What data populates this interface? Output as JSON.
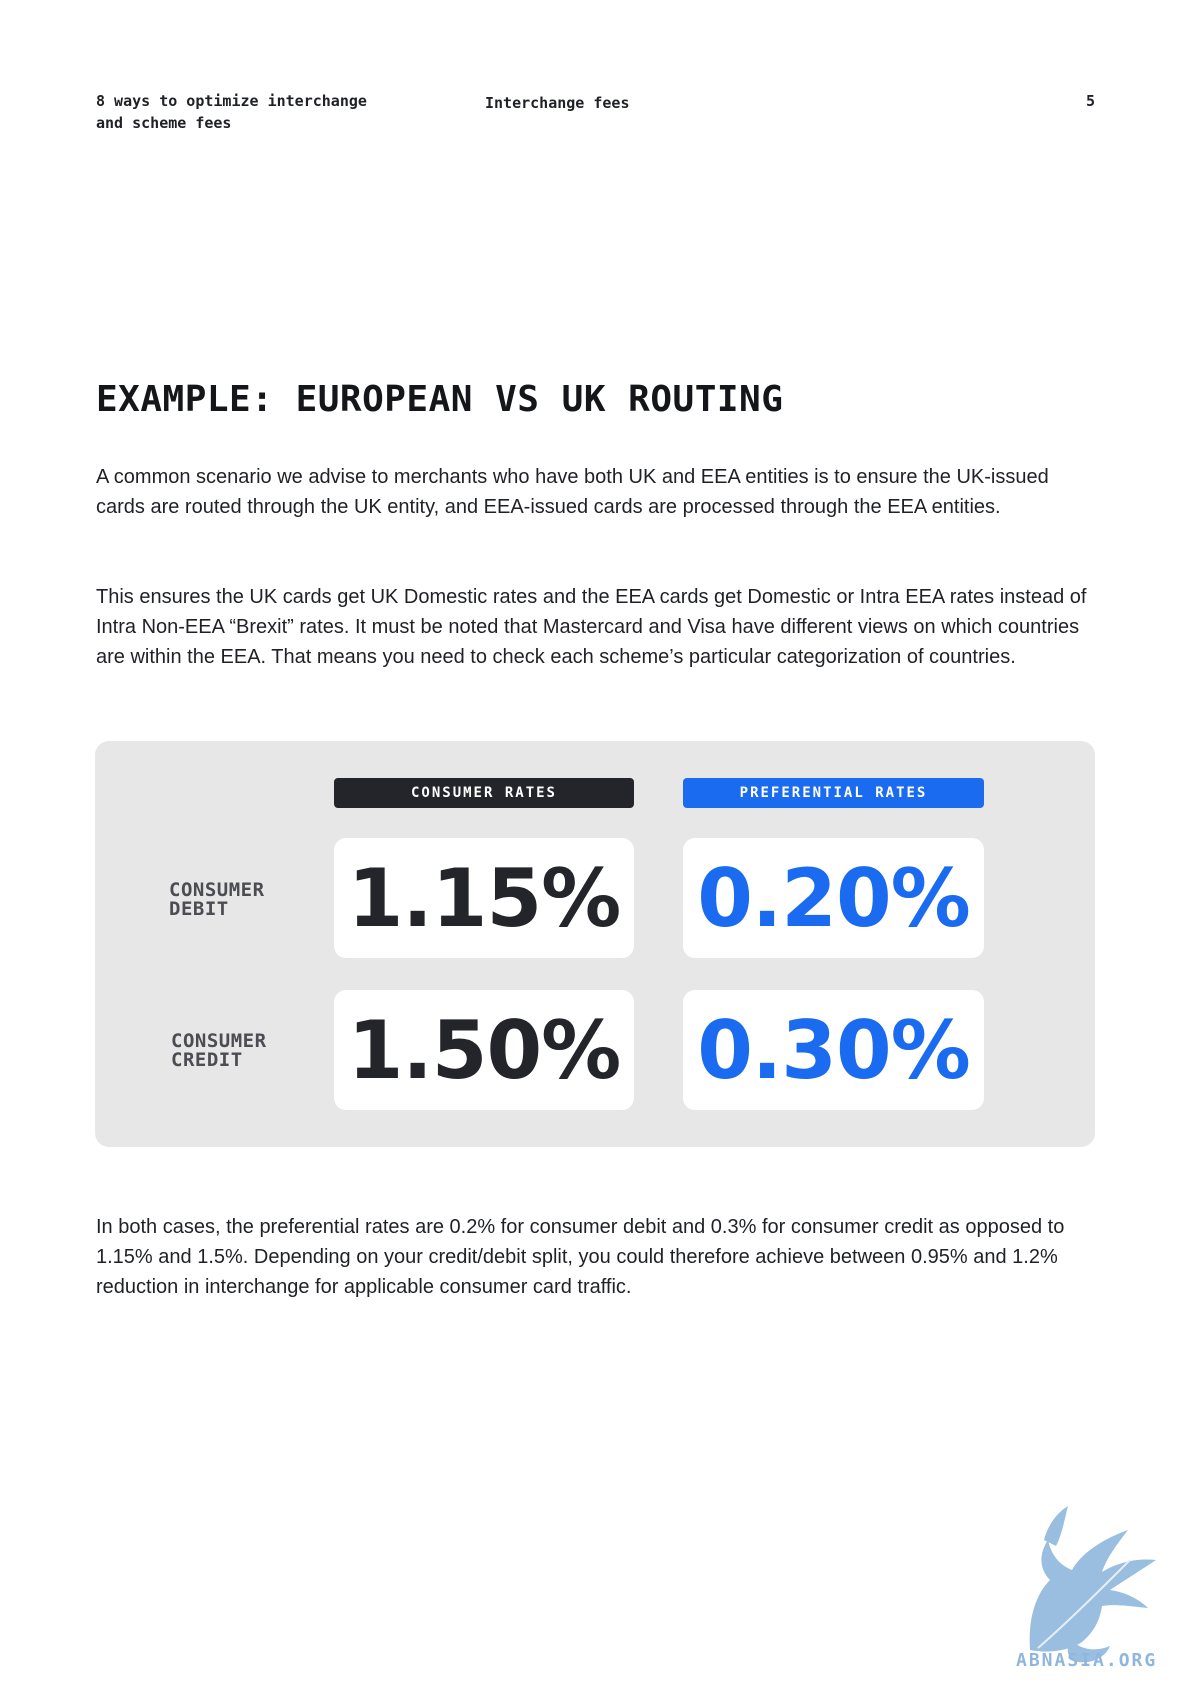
{
  "header": {
    "doc_title_line1": "8 ways to optimize interchange",
    "doc_title_line2": "and scheme fees",
    "section": "Interchange fees",
    "page_number": "5"
  },
  "title": "EXAMPLE: EUROPEAN VS UK ROUTING",
  "paragraphs": {
    "p1": "A common scenario we advise to merchants who have both UK and EEA entities is to ensure the UK-issued cards are routed through the UK entity, and EEA-issued cards are processed through the EEA entities.",
    "p2": "This ensures the UK cards get UK Domestic rates and the EEA cards get Domestic or Intra EEA rates instead of Intra Non-EEA “Brexit” rates. It must be noted that Mastercard and Visa have different views on which countries are within the EEA. That means you need to check each scheme’s particular categorization of countries.",
    "p3": "In both cases, the preferential rates are 0.2% for consumer debit and 0.3% for consumer credit as opposed to 1.15% and 1.5%. Depending on your credit/debit split, you could therefore achieve between 0.95% and 1.2% reduction in interchange for applicable consumer card traffic."
  },
  "rates_table": {
    "columns": [
      "CONSUMER RATES",
      "PREFERENTIAL RATES"
    ],
    "rows": [
      {
        "label_line1": "CONSUMER",
        "label_line2": "DEBIT",
        "consumer": "1.15%",
        "preferential": "0.20%"
      },
      {
        "label_line1": "CONSUMER",
        "label_line2": "CREDIT",
        "consumer": "1.50%",
        "preferential": "0.30%"
      }
    ],
    "colors": {
      "consumer": "#23252b",
      "preferential": "#1a6bf0",
      "panel_bg": "#e8e7e8"
    }
  },
  "watermark": {
    "text": "ABNASIA.ORG",
    "icon": "griffin-logo-icon",
    "color": "#8fb7dd"
  }
}
